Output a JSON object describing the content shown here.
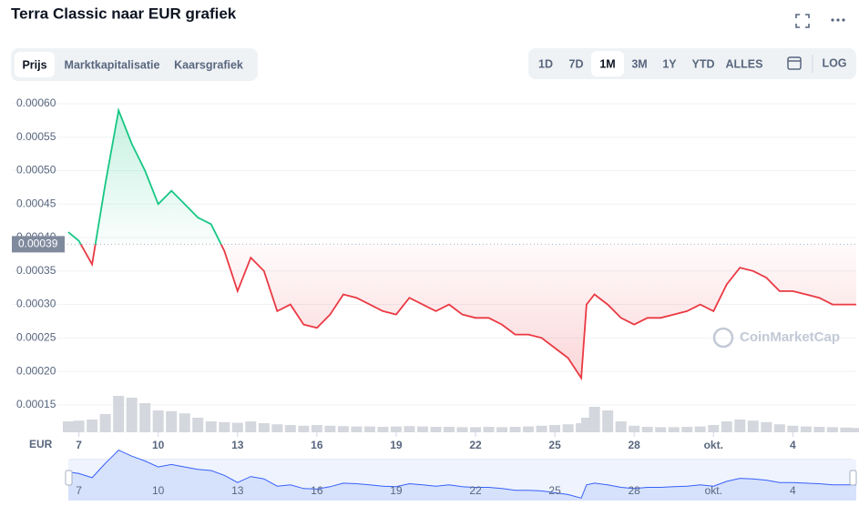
{
  "ui": {
    "tabs": [
      "Prijs",
      "Marktkapitalisatie",
      "Kaarsgrafiek"
    ],
    "active_tab": 0,
    "ranges": [
      "1D",
      "7D",
      "1M",
      "3M",
      "1Y",
      "YTD",
      "ALLES"
    ],
    "active_range": 2,
    "log": "LOG"
  },
  "chart_data": {
    "type": "line",
    "title": "Terra Classic naar EUR grafiek",
    "y_label": "EUR",
    "watermark": "CoinMarketCap",
    "reference": {
      "value": 0.00039,
      "label": "0.00039"
    },
    "up_color": "#16c784",
    "down_color": "#ea3943",
    "volume_color": "#d4d7dd",
    "x": [
      6.6,
      7,
      7.5,
      8,
      8.5,
      9,
      9.5,
      10,
      10.5,
      11,
      11.5,
      12,
      12.5,
      13,
      13.5,
      14,
      14.5,
      15,
      15.5,
      16,
      16.5,
      17,
      17.5,
      18,
      18.5,
      19,
      19.5,
      20,
      20.5,
      21,
      21.5,
      22,
      22.5,
      23,
      23.5,
      24,
      24.5,
      25,
      25.5,
      26,
      26.2,
      26.5,
      27,
      27.5,
      28,
      28.5,
      29,
      29.5,
      30,
      30.5,
      31,
      31.5,
      32,
      32.5,
      33,
      33.5,
      34,
      34.5,
      35,
      35.5,
      36,
      36.4
    ],
    "series": [
      {
        "name": "Prijs",
        "values": [
          0.000408,
          0.000395,
          0.00036,
          0.00048,
          0.00059,
          0.00054,
          0.0005,
          0.00045,
          0.00047,
          0.00045,
          0.00043,
          0.00042,
          0.00038,
          0.00032,
          0.00037,
          0.00035,
          0.00029,
          0.0003,
          0.00027,
          0.000265,
          0.000285,
          0.000315,
          0.00031,
          0.0003,
          0.00029,
          0.000285,
          0.00031,
          0.0003,
          0.00029,
          0.0003,
          0.000285,
          0.00028,
          0.00028,
          0.00027,
          0.000255,
          0.000255,
          0.00025,
          0.000235,
          0.00022,
          0.00019,
          0.0003,
          0.000315,
          0.0003,
          0.00028,
          0.00027,
          0.00028,
          0.00028,
          0.000285,
          0.00029,
          0.0003,
          0.00029,
          0.00033,
          0.000355,
          0.00035,
          0.00034,
          0.00032,
          0.00032,
          0.000315,
          0.00031,
          0.0003,
          0.0003,
          0.0003
        ]
      }
    ],
    "volume": [
      30,
      32,
      35,
      50,
      100,
      95,
      80,
      60,
      58,
      52,
      40,
      30,
      28,
      26,
      30,
      25,
      22,
      20,
      18,
      20,
      18,
      17,
      16,
      16,
      15,
      16,
      17,
      16,
      15,
      15,
      14,
      14,
      15,
      14,
      15,
      16,
      18,
      20,
      22,
      25,
      40,
      70,
      60,
      30,
      18,
      15,
      14,
      14,
      15,
      16,
      20,
      30,
      35,
      32,
      28,
      22,
      18,
      16,
      15,
      14,
      13,
      12
    ],
    "xlim": [
      6.6,
      36.4
    ],
    "xticks": [
      7,
      10,
      13,
      16,
      19,
      22,
      25,
      28,
      {
        "value": 31,
        "label": "okt."
      },
      {
        "value": 34,
        "label": "4"
      }
    ],
    "ylim": [
      0.000109,
      0.000619
    ],
    "yticks": [
      {
        "value": 0.0006,
        "label": "0.00060"
      },
      0.00055,
      {
        "value": 0.0005,
        "label": "0.00050"
      },
      0.00045,
      {
        "value": 0.0004,
        "label": "0.00040"
      },
      0.00035,
      {
        "value": 0.0003,
        "label": "0.00030"
      },
      0.00025,
      {
        "value": 0.0002,
        "label": "0.00020"
      },
      0.00015
    ],
    "grid": true
  }
}
